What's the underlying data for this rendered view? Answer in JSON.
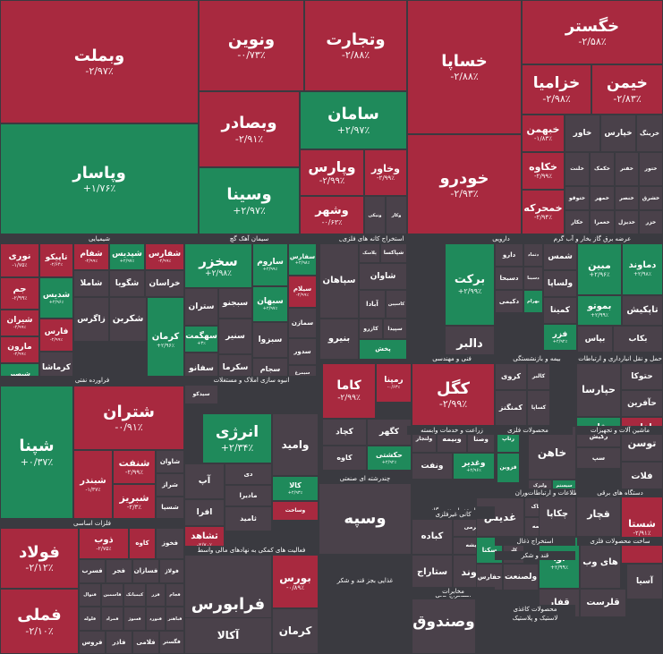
{
  "colors": {
    "up": "#1f8a5b",
    "down": "#a8293f",
    "neutral": "#4a414a",
    "background": "#3a3a40"
  },
  "chart_data": {
    "type": "treemap",
    "groups": [
      "شیمیایی",
      "سیمان آهک گچ",
      "حمل و نقل",
      "استخراج کانه های فلزی",
      "دارویی",
      "عرضه برق گاز بخار و آب گرم",
      "فراورده نفتی",
      "انبوه سازی املاک و مستغلات",
      "فنی و مهندسی",
      "بیمه و بازنشستگی",
      "حمل و نقل انبارداری و ارتباطات",
      "زراعت و خدمات وابسته",
      "محصولات فلزی",
      "ماشین آلات و تجهیزات",
      "فلزات اساسی",
      "چندرشته ای صنعتی",
      "هتل و رستوران",
      "استخراج نفت گاز",
      "اطلاعات و ارتباطات",
      "دستگاه های برقی",
      "استخراج کانی",
      "فعالیت های کمکی به نهادهای مالی واسط",
      "کانی غیرفلزی",
      "استخراج ذغال",
      "قند و شکر",
      "غذایی بجز قند و شکر",
      "محصولات کاغذی",
      "ساخت محصولات فلزی",
      "لاستیک و پلاستیک",
      "مخابرات",
      "محصولات چوبی",
      "کاشی و سرامیک",
      "شرکت های کامپیوتری",
      "خودرو و ساخت قطعات",
      "سایر محصولات کانی غیرفلزی",
      "انتشار چاپ و تکثیر",
      "خدمات فنی و مهندسی",
      "سایر واسطه گری",
      "ساخت دستگاه های برقی",
      "محصولات کامپیوتری",
      "بانک ها و موسسات اعتباری",
      "سرمایه گذاری ها"
    ],
    "tiles": [
      {
        "name": "وبملت",
        "change": "-۲/۹۷٪"
      },
      {
        "name": "وپاسار",
        "change": "+۱/۷۶٪"
      },
      {
        "name": "ونوین",
        "change": "-۰/۷۳٪"
      },
      {
        "name": "وبصادر",
        "change": "-۲/۹۱٪"
      },
      {
        "name": "وسینا",
        "change": "+۲/۹۷٪"
      },
      {
        "name": "وتجارت",
        "change": "-۲/۸۸٪"
      },
      {
        "name": "سامان",
        "change": "+۲/۹۷٪"
      },
      {
        "name": "وپارس",
        "change": "-۲/۹۹٪"
      },
      {
        "name": "وخاور",
        "change": "-۲/۹۹٪"
      },
      {
        "name": "وشهر",
        "change": "-۰/۶۳٪"
      },
      {
        "name": "ونیکی",
        "change": ""
      },
      {
        "name": "وکار",
        "change": ""
      },
      {
        "name": "خساپا",
        "change": "-۲/۸۸٪"
      },
      {
        "name": "خودرو",
        "change": "-۲/۹۳٪"
      },
      {
        "name": "خگستر",
        "change": "-۲/۵۸٪"
      },
      {
        "name": "خزامیا",
        "change": "-۲/۹۸٪"
      },
      {
        "name": "خیمن",
        "change": "-۲/۸۳٪"
      },
      {
        "name": "خبهمن",
        "change": "-۱/۸۳٪"
      },
      {
        "name": "خکاوه",
        "change": "-۲/۹۹٪"
      },
      {
        "name": "خمحرکه",
        "change": "-۲/۹۴٪"
      },
      {
        "name": "خاور",
        "change": ""
      },
      {
        "name": "خپارس",
        "change": ""
      },
      {
        "name": "خرینگ",
        "change": ""
      },
      {
        "name": "خلنت",
        "change": ""
      },
      {
        "name": "خکمک",
        "change": ""
      },
      {
        "name": "خفنر",
        "change": ""
      },
      {
        "name": "ختور",
        "change": ""
      },
      {
        "name": "ختوقو",
        "change": ""
      },
      {
        "name": "خمهر",
        "change": ""
      },
      {
        "name": "خنصر",
        "change": ""
      },
      {
        "name": "خشرق",
        "change": ""
      },
      {
        "name": "خکار",
        "change": ""
      },
      {
        "name": "خعمرا",
        "change": ""
      },
      {
        "name": "خدیزل",
        "change": ""
      },
      {
        "name": "خزر",
        "change": ""
      },
      {
        "name": "ختراک",
        "change": ""
      },
      {
        "name": "خودکفا",
        "change": ""
      },
      {
        "name": "فرابورس",
        "change": ""
      },
      {
        "name": "شپنا",
        "change": "+۰/۳۷٪"
      },
      {
        "name": "شتران",
        "change": "-۰/۹۱٪"
      },
      {
        "name": "شبندر",
        "change": "-۱/۳۷٪"
      },
      {
        "name": "شنفت",
        "change": "-۲/۹۹٪"
      },
      {
        "name": "شبریز",
        "change": "-۲/۳٪"
      },
      {
        "name": "شاوان",
        "change": ""
      },
      {
        "name": "شراز",
        "change": ""
      },
      {
        "name": "شسپا",
        "change": ""
      },
      {
        "name": "شیراز",
        "change": ""
      },
      {
        "name": "فولاد",
        "change": "-۲/۱۲٪"
      },
      {
        "name": "فملی",
        "change": "-۲/۱۰٪"
      },
      {
        "name": "ذوب",
        "change": "-۲/۷۵٪"
      },
      {
        "name": "کاوه",
        "change": "-۳٪"
      },
      {
        "name": "فخوز",
        "change": ""
      },
      {
        "name": "فسرب",
        "change": ""
      },
      {
        "name": "فجر",
        "change": ""
      },
      {
        "name": "فسازان",
        "change": ""
      },
      {
        "name": "فولاژ",
        "change": ""
      },
      {
        "name": "فنوال",
        "change": ""
      },
      {
        "name": "فاسمین",
        "change": ""
      },
      {
        "name": "کیمیاتک",
        "change": ""
      },
      {
        "name": "فزر",
        "change": ""
      },
      {
        "name": "فجام",
        "change": ""
      },
      {
        "name": "فلوله",
        "change": ""
      },
      {
        "name": "فمراد",
        "change": ""
      },
      {
        "name": "فسوژ",
        "change": ""
      },
      {
        "name": "فنورد",
        "change": ""
      },
      {
        "name": "فباهنر",
        "change": ""
      },
      {
        "name": "فروس",
        "change": ""
      },
      {
        "name": "فاذر",
        "change": ""
      },
      {
        "name": "فلامی",
        "change": ""
      },
      {
        "name": "فگستر",
        "change": ""
      },
      {
        "name": "شکلر",
        "change": ""
      },
      {
        "name": "ساخت",
        "change": ""
      },
      {
        "name": "فرآور",
        "change": ""
      },
      {
        "name": "قلرست",
        "change": ""
      },
      {
        "name": "حفارس",
        "change": ""
      },
      {
        "name": "کیسون",
        "change": ""
      },
      {
        "name": "حکشتی",
        "change": ""
      },
      {
        "name": "پترول",
        "change": ""
      },
      {
        "name": "شاراک",
        "change": ""
      },
      {
        "name": "شفن",
        "change": ""
      },
      {
        "name": "شغدیر",
        "change": ""
      },
      {
        "name": "نوری",
        "change": "-۱/۷۵٪"
      },
      {
        "name": "تاپیکو",
        "change": "-۲/۶۴٪"
      },
      {
        "name": "شفام",
        "change": "-۲/۹۹٪"
      },
      {
        "name": "شپدیس",
        "change": "+۲/۹۷٪"
      },
      {
        "name": "شفارس",
        "change": "-۲/۹۹٪"
      },
      {
        "name": "جم",
        "change": "-۲/۹۹٪"
      },
      {
        "name": "شیران",
        "change": "-۲/۹۹٪"
      },
      {
        "name": "شدیس",
        "change": "+۲/۹۶٪"
      },
      {
        "name": "مارون",
        "change": "-۲/۹۹٪"
      },
      {
        "name": "شبصیر",
        "change": "+۲/۹۹٪"
      },
      {
        "name": "فارس",
        "change": "-۲/۹۹٪"
      },
      {
        "name": "کرماشا",
        "change": ""
      },
      {
        "name": "شاملا",
        "change": ""
      },
      {
        "name": "شگویا",
        "change": ""
      },
      {
        "name": "خراسان",
        "change": ""
      },
      {
        "name": "زاگرس",
        "change": ""
      },
      {
        "name": "شکربن",
        "change": ""
      },
      {
        "name": "کرمان",
        "change": "+۲/۹۶٪"
      },
      {
        "name": "تاصیکو",
        "change": "-۲/۹۹٪"
      },
      {
        "name": "شغدیر",
        "change": "-۲/۹۹٪"
      },
      {
        "name": "سخزر",
        "change": "+۲/۹۸٪"
      },
      {
        "name": "ساروم",
        "change": "+۲/۹۹٪"
      },
      {
        "name": "سفارس",
        "change": "+۲/۹۸٪"
      },
      {
        "name": "سغرب",
        "change": "+۲/۹۹٪"
      },
      {
        "name": "سبهان",
        "change": "+۲/۹۷٪"
      },
      {
        "name": "سیلام",
        "change": "-۲/۹۹٪"
      },
      {
        "name": "ستران",
        "change": ""
      },
      {
        "name": "سبجنو",
        "change": ""
      },
      {
        "name": "سنیر",
        "change": ""
      },
      {
        "name": "سهگمت",
        "change": "+۳٪"
      },
      {
        "name": "سبزوا",
        "change": ""
      },
      {
        "name": "سمازن",
        "change": ""
      },
      {
        "name": "سدور",
        "change": ""
      },
      {
        "name": "سجام",
        "change": ""
      },
      {
        "name": "سیمرغ",
        "change": ""
      },
      {
        "name": "سفانو",
        "change": ""
      },
      {
        "name": "سکرما",
        "change": ""
      },
      {
        "name": "سیدکو",
        "change": ""
      },
      {
        "name": "سخاش",
        "change": "۰٪"
      },
      {
        "name": "سپیدار",
        "change": ""
      },
      {
        "name": "سشمال",
        "change": ""
      },
      {
        "name": "سکرد",
        "change": ""
      },
      {
        "name": "سفار",
        "change": ""
      },
      {
        "name": "آریان",
        "change": "-۲/۹۹٪"
      },
      {
        "name": "سپاهان",
        "change": ""
      },
      {
        "name": "پلاسک",
        "change": ""
      },
      {
        "name": "شپاکسا",
        "change": ""
      },
      {
        "name": "شاوان",
        "change": ""
      },
      {
        "name": "آبادا",
        "change": ""
      },
      {
        "name": "کاسپین",
        "change": ""
      },
      {
        "name": "بنیرو",
        "change": ""
      },
      {
        "name": "کازرو",
        "change": ""
      },
      {
        "name": "سپیدا",
        "change": ""
      },
      {
        "name": "پخش",
        "change": "+۲/۷۹٪"
      },
      {
        "name": "برکت",
        "change": "+۲/۹۹٪"
      },
      {
        "name": "دالبر",
        "change": ""
      },
      {
        "name": "دارو",
        "change": ""
      },
      {
        "name": "دتماد",
        "change": ""
      },
      {
        "name": "دسبحا",
        "change": ""
      },
      {
        "name": "دسینا",
        "change": ""
      },
      {
        "name": "دکیمی",
        "change": ""
      },
      {
        "name": "بهرام",
        "change": "+۲/۳۵٪"
      },
      {
        "name": "مبین",
        "change": "+۲/۹۶٪"
      },
      {
        "name": "دماوند",
        "change": "+۲/۹۸٪"
      },
      {
        "name": "بموتو",
        "change": "+۲/۹۹٪"
      },
      {
        "name": "بپاس",
        "change": ""
      },
      {
        "name": "تاپکیش",
        "change": ""
      },
      {
        "name": "بکاب",
        "change": ""
      },
      {
        "name": "شمس",
        "change": ""
      },
      {
        "name": "ولساپا",
        "change": ""
      },
      {
        "name": "کمینا",
        "change": ""
      },
      {
        "name": "فزر",
        "change": "+۲/۹۲٪"
      },
      {
        "name": "کاما",
        "change": "-۲/۹۹٪"
      },
      {
        "name": "رمپنا",
        "change": "-۰/۶۳٪"
      },
      {
        "name": "کگل",
        "change": "-۲/۹۹٪"
      },
      {
        "name": "کچاد",
        "change": ""
      },
      {
        "name": "کگهر",
        "change": ""
      },
      {
        "name": "کروی",
        "change": ""
      },
      {
        "name": "کالبر",
        "change": ""
      },
      {
        "name": "کمنگنز",
        "change": ""
      },
      {
        "name": "کساپا",
        "change": ""
      },
      {
        "name": "کاوه",
        "change": ""
      },
      {
        "name": "حکشتی",
        "change": "+۲/۹۲٪"
      },
      {
        "name": "حپارسا",
        "change": ""
      },
      {
        "name": "حتوکا",
        "change": ""
      },
      {
        "name": "حآفرین",
        "change": ""
      },
      {
        "name": "حفاری",
        "change": "+۲/۹۷٪"
      },
      {
        "name": "اخابر",
        "change": "-۲/۹۴٪"
      },
      {
        "name": "شستا",
        "change": "-۲/۹۱٪"
      },
      {
        "name": "وصندوق",
        "change": ""
      },
      {
        "name": "وسپه",
        "change": ""
      },
      {
        "name": "ولتجار",
        "change": ""
      },
      {
        "name": "وبیمه",
        "change": ""
      },
      {
        "name": "وصنا",
        "change": ""
      },
      {
        "name": "ونفت",
        "change": ""
      },
      {
        "name": "وغدیر",
        "change": "+۲/۹۶٪"
      },
      {
        "name": "وامید",
        "change": ""
      },
      {
        "name": "کالا",
        "change": "+۲/۹۳٪"
      },
      {
        "name": "انرژی",
        "change": "+۲/۳۴٪"
      },
      {
        "name": "فرابورس",
        "change": ""
      },
      {
        "name": "بورس",
        "change": "-۰/۸۹٪"
      },
      {
        "name": "تنوین",
        "change": "+۲/۸۹٪"
      },
      {
        "name": "آکالا",
        "change": ""
      },
      {
        "name": "کرمان",
        "change": ""
      },
      {
        "name": "آپ",
        "change": ""
      },
      {
        "name": "دی",
        "change": ""
      },
      {
        "name": "مادیرا",
        "change": ""
      },
      {
        "name": "افرا",
        "change": ""
      },
      {
        "name": "ثامید",
        "change": ""
      },
      {
        "name": "ثشاهد",
        "change": "-۲/۷۰٪"
      },
      {
        "name": "وساخت",
        "change": "-۲/۹۰٪"
      },
      {
        "name": "ثاخت",
        "change": "-۲/۹۸٪"
      },
      {
        "name": "ثمسکن",
        "change": "+۲/۹۸٪"
      },
      {
        "name": "ثنوسا",
        "change": ""
      },
      {
        "name": "ثفارس",
        "change": ""
      },
      {
        "name": "ثباغ",
        "change": ""
      },
      {
        "name": "ثعمرا",
        "change": ""
      },
      {
        "name": "آبنوس",
        "change": ""
      },
      {
        "name": "ثرود",
        "change": ""
      },
      {
        "name": "ثبهساز",
        "change": ""
      },
      {
        "name": "کسرا",
        "change": "+۲/۹۵٪"
      },
      {
        "name": "کباده",
        "change": ""
      },
      {
        "name": "سپرمی",
        "change": ""
      },
      {
        "name": "شیشه",
        "change": ""
      },
      {
        "name": "ستاراج",
        "change": ""
      },
      {
        "name": "کلوند",
        "change": ""
      },
      {
        "name": "کاذر",
        "change": ""
      },
      {
        "name": "غشاذر",
        "change": ""
      },
      {
        "name": "سرود",
        "change": ""
      },
      {
        "name": "غبهنوش",
        "change": ""
      },
      {
        "name": "غپینو",
        "change": ""
      },
      {
        "name": "غگل",
        "change": ""
      },
      {
        "name": "غمارگ",
        "change": ""
      },
      {
        "name": "غشهد",
        "change": ""
      },
      {
        "name": "غزر",
        "change": ""
      },
      {
        "name": "غکورش",
        "change": ""
      },
      {
        "name": "غبشهر",
        "change": ""
      },
      {
        "name": "غدیس",
        "change": ""
      },
      {
        "name": "غپاک",
        "change": ""
      },
      {
        "name": "بیمه",
        "change": ""
      },
      {
        "name": "سکنا",
        "change": "+۲/۹۸٪"
      },
      {
        "name": "کلر",
        "change": ""
      },
      {
        "name": "چکاپا",
        "change": ""
      },
      {
        "name": "قچار",
        "change": ""
      },
      {
        "name": "آسیا",
        "change": ""
      },
      {
        "name": "آوا",
        "change": "+۲/۹۹٪"
      },
      {
        "name": "های وب",
        "change": ""
      },
      {
        "name": "رتاپ",
        "change": "+۲/۹۲٪"
      },
      {
        "name": "قزوین",
        "change": "+۲/۹۳٪"
      },
      {
        "name": "خاهن",
        "change": ""
      },
      {
        "name": "ولیزک",
        "change": ""
      },
      {
        "name": "سیستم",
        "change": "+۲/۹۵٪"
      },
      {
        "name": "رکیش",
        "change": ""
      },
      {
        "name": "سپ",
        "change": ""
      },
      {
        "name": "توسن",
        "change": ""
      },
      {
        "name": "فلات",
        "change": ""
      },
      {
        "name": "حفارس",
        "change": ""
      },
      {
        "name": "ولصنعت",
        "change": ""
      },
      {
        "name": "قفار",
        "change": ""
      },
      {
        "name": "قلرست",
        "change": ""
      },
      {
        "name": "قنیشا",
        "change": ""
      },
      {
        "name": "قشهد",
        "change": ""
      },
      {
        "name": "قهکمت",
        "change": ""
      },
      {
        "name": "وکادو",
        "change": ""
      },
      {
        "name": "کاسپین",
        "change": ""
      },
      {
        "name": "ولشرق",
        "change": ""
      },
      {
        "name": "افق",
        "change": ""
      },
      {
        "name": "کامیت",
        "change": ""
      },
      {
        "name": "خزامیا",
        "change": ""
      },
      {
        "name": "کیسون",
        "change": ""
      },
      {
        "name": "حآسا",
        "change": ""
      },
      {
        "name": "رفاه",
        "change": ""
      },
      {
        "name": "وپست",
        "change": ""
      },
      {
        "name": "سپید",
        "change": ""
      },
      {
        "name": "تکنو",
        "change": ""
      },
      {
        "name": "تاپیکو",
        "change": ""
      },
      {
        "name": "سیتا",
        "change": ""
      },
      {
        "name": "بترانس",
        "change": ""
      },
      {
        "name": "فاراک",
        "change": ""
      },
      {
        "name": "خاذین",
        "change": ""
      },
      {
        "name": "گکوثر",
        "change": ""
      },
      {
        "name": "گکیش",
        "change": ""
      },
      {
        "name": "کرمان",
        "change": ""
      },
      {
        "name": "بکام",
        "change": ""
      },
      {
        "name": "لابسا",
        "change": ""
      },
      {
        "name": "لپارس",
        "change": ""
      },
      {
        "name": "لکما",
        "change": ""
      },
      {
        "name": "کرازی",
        "change": ""
      },
      {
        "name": "حسینا",
        "change": ""
      },
      {
        "name": "ختوقا",
        "change": ""
      },
      {
        "name": "کهمدا",
        "change": ""
      },
      {
        "name": "کشرق",
        "change": ""
      },
      {
        "name": "کمرجان",
        "change": ""
      },
      {
        "name": "خاهن",
        "change": ""
      },
      {
        "name": "ختراک",
        "change": ""
      }
    ]
  }
}
